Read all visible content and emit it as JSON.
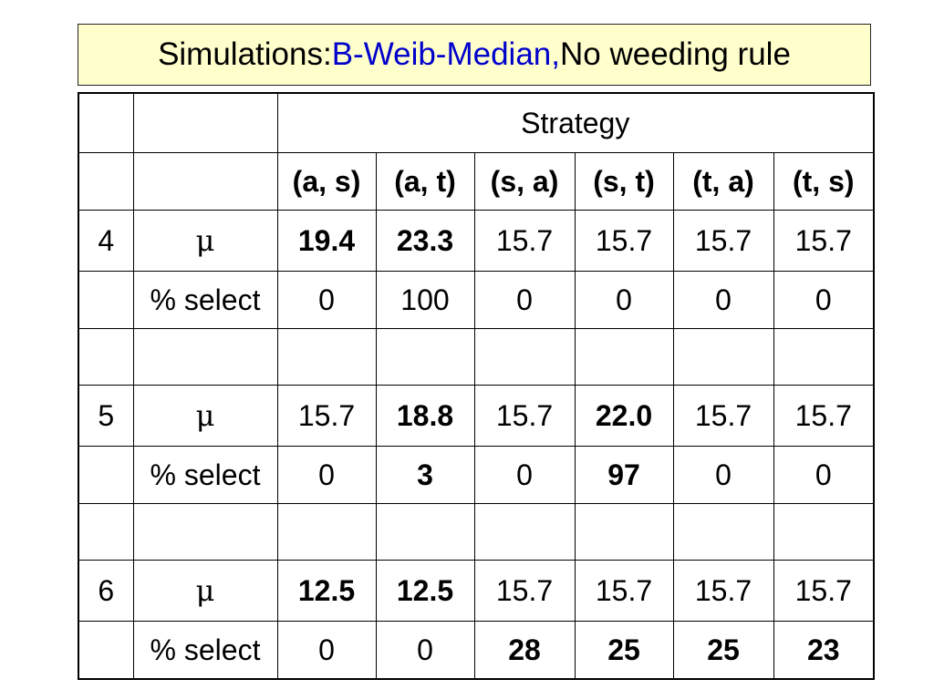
{
  "title": {
    "prefix": "Simulations: ",
    "highlight": "B-Weib-Median,",
    "suffix": " No weeding rule"
  },
  "header": {
    "strategy": "Strategy",
    "pairs": [
      "(a, s)",
      "(a, t)",
      "(s, a)",
      "(s, t)",
      "(t, a)",
      "(t, s)"
    ]
  },
  "mu_symbol": "μ",
  "select_label": "% select",
  "colors": {
    "blue_highlight": "#0000dd",
    "red_highlight": "#cc0000",
    "title_background": "#ffffcc"
  },
  "groups": [
    {
      "k": "4",
      "mu": [
        {
          "v": "19.4",
          "bold": true,
          "color": "blue"
        },
        {
          "v": "23.3",
          "bold": true,
          "color": "blue"
        },
        {
          "v": "15.7"
        },
        {
          "v": "15.7"
        },
        {
          "v": "15.7"
        },
        {
          "v": "15.7"
        }
      ],
      "select": [
        {
          "v": "0"
        },
        {
          "v": "100",
          "color": "blue"
        },
        {
          "v": "0"
        },
        {
          "v": "0"
        },
        {
          "v": "0"
        },
        {
          "v": "0"
        }
      ]
    },
    {
      "k": "5",
      "mu": [
        {
          "v": "15.7"
        },
        {
          "v": "18.8",
          "bold": true,
          "color": "blue"
        },
        {
          "v": "15.7"
        },
        {
          "v": "22.0",
          "bold": true,
          "color": "blue"
        },
        {
          "v": "15.7"
        },
        {
          "v": "15.7"
        }
      ],
      "select": [
        {
          "v": "0"
        },
        {
          "v": "3",
          "bold": true,
          "color": "blue"
        },
        {
          "v": "0"
        },
        {
          "v": "97",
          "bold": true,
          "color": "blue"
        },
        {
          "v": "0"
        },
        {
          "v": "0"
        }
      ]
    },
    {
      "k": "6",
      "mu": [
        {
          "v": "12.5",
          "bold": true,
          "color": "red"
        },
        {
          "v": "12.5",
          "bold": true,
          "color": "red"
        },
        {
          "v": "15.7"
        },
        {
          "v": "15.7"
        },
        {
          "v": "15.7"
        },
        {
          "v": "15.7"
        }
      ],
      "select": [
        {
          "v": "0"
        },
        {
          "v": "0"
        },
        {
          "v": "28",
          "bold": true,
          "color": "blue"
        },
        {
          "v": "25",
          "bold": true,
          "color": "blue"
        },
        {
          "v": "25",
          "bold": true,
          "color": "blue"
        },
        {
          "v": "23",
          "bold": true,
          "color": "blue"
        }
      ]
    }
  ]
}
